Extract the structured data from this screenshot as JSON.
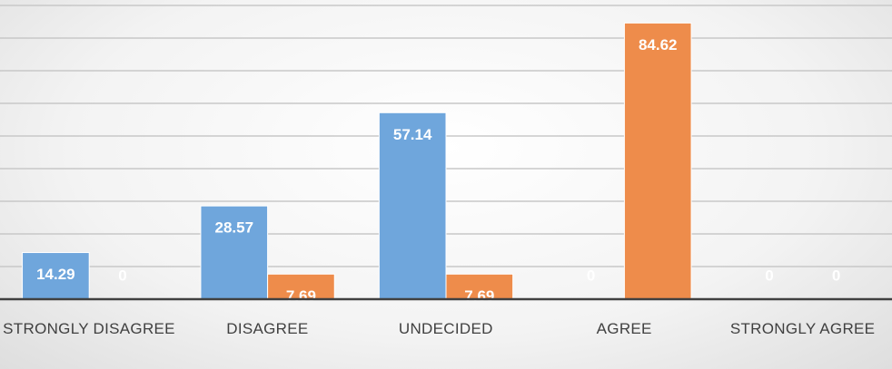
{
  "chart_data": {
    "type": "bar",
    "categories": [
      "STRONGLY DISAGREE",
      "DISAGREE",
      "UNDECIDED",
      "AGREE",
      "STRONGLY AGREE"
    ],
    "series": [
      {
        "color": "#6fa6dc",
        "values": [
          14.29,
          28.57,
          57.14,
          0,
          0
        ]
      },
      {
        "color": "#ee8c4b",
        "values": [
          0,
          7.69,
          7.69,
          84.62,
          0
        ]
      }
    ],
    "ylim": [
      0,
      90
    ],
    "yticks": [
      0,
      10,
      20,
      30,
      40,
      50,
      60,
      70,
      80,
      90
    ],
    "grid": true
  }
}
